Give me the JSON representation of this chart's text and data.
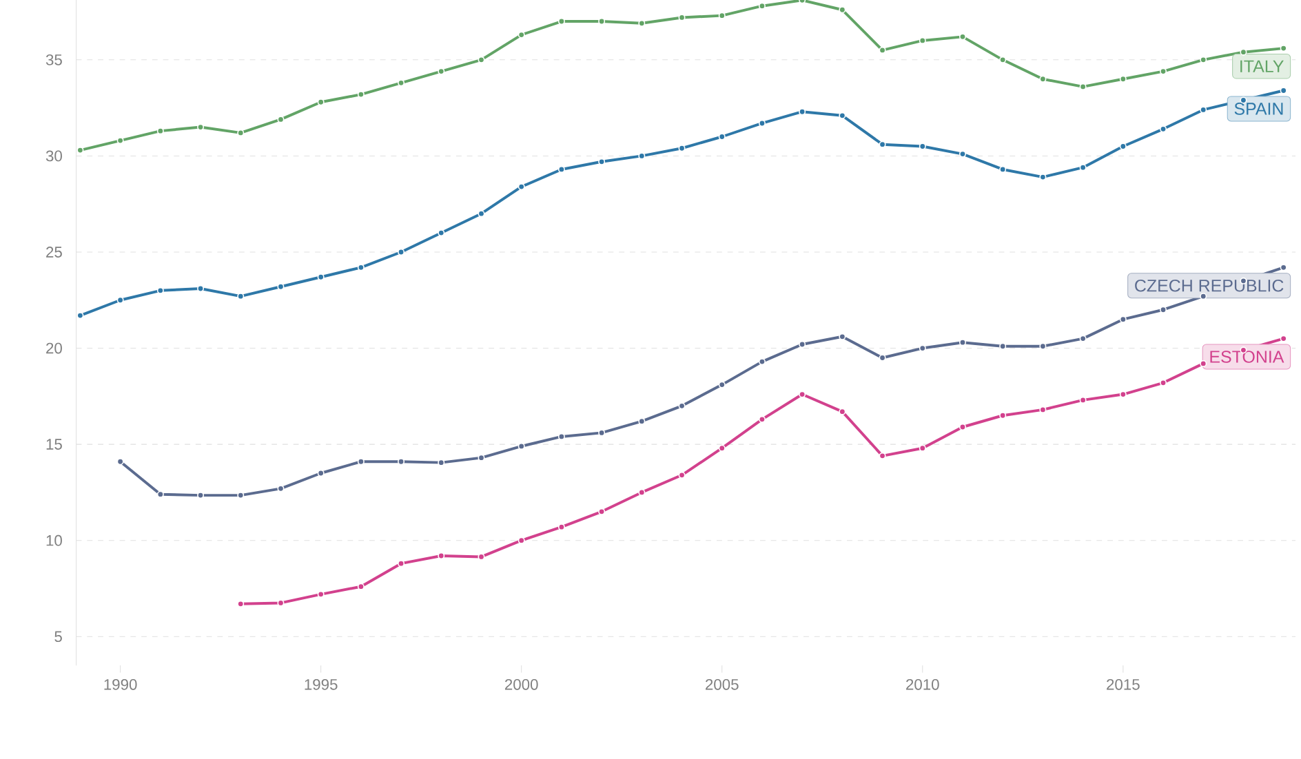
{
  "chart_data": {
    "type": "line",
    "marker": "circle",
    "line_style": "solid",
    "grid": "y",
    "xlim": [
      1988.9,
      2019.3
    ],
    "ylim": [
      3.5,
      38.3
    ],
    "xticks": [
      1990,
      1995,
      2000,
      2005,
      2010,
      2015
    ],
    "yticks": [
      5,
      10,
      15,
      20,
      25,
      30,
      35
    ],
    "series": [
      {
        "name": "ITALY",
        "color": "#62a466",
        "x": [
          1989,
          1990,
          1991,
          1992,
          1993,
          1994,
          1995,
          1996,
          1997,
          1998,
          1999,
          2000,
          2001,
          2002,
          2003,
          2004,
          2005,
          2006,
          2007,
          2008,
          2009,
          2010,
          2011,
          2012,
          2013,
          2014,
          2015,
          2016,
          2017,
          2018,
          2019
        ],
        "values": [
          30.3,
          30.8,
          31.3,
          31.5,
          31.2,
          31.9,
          32.8,
          33.2,
          33.8,
          34.4,
          35.0,
          36.3,
          37.0,
          37.0,
          36.9,
          37.2,
          37.3,
          37.8,
          38.1,
          37.6,
          35.5,
          36.0,
          36.2,
          35.0,
          34.0,
          33.6,
          34.0,
          34.4,
          35.0,
          35.4,
          35.6
        ]
      },
      {
        "name": "SPAIN",
        "color": "#2e78a8",
        "x": [
          1989,
          1990,
          1991,
          1992,
          1993,
          1994,
          1995,
          1996,
          1997,
          1998,
          1999,
          2000,
          2001,
          2002,
          2003,
          2004,
          2005,
          2006,
          2007,
          2008,
          2009,
          2010,
          2011,
          2012,
          2013,
          2014,
          2015,
          2016,
          2017,
          2018,
          2019
        ],
        "values": [
          21.7,
          22.5,
          23.0,
          23.1,
          22.7,
          23.2,
          23.7,
          24.2,
          25.0,
          26.0,
          27.0,
          28.4,
          29.3,
          29.7,
          30.0,
          30.4,
          31.0,
          31.7,
          32.3,
          32.1,
          30.6,
          30.5,
          30.1,
          29.3,
          28.9,
          29.4,
          30.5,
          31.4,
          32.4,
          32.9,
          33.4
        ]
      },
      {
        "name": "CZECH REPUBLIC",
        "color": "#5b6b8f",
        "x": [
          1990,
          1991,
          1992,
          1993,
          1994,
          1995,
          1996,
          1997,
          1998,
          1999,
          2000,
          2001,
          2002,
          2003,
          2004,
          2005,
          2006,
          2007,
          2008,
          2009,
          2010,
          2011,
          2012,
          2013,
          2014,
          2015,
          2016,
          2017,
          2018,
          2019
        ],
        "values": [
          14.1,
          12.4,
          12.35,
          12.35,
          12.7,
          13.5,
          14.1,
          14.1,
          14.05,
          14.3,
          14.9,
          15.4,
          15.6,
          16.2,
          17.0,
          18.1,
          19.3,
          20.2,
          20.6,
          19.5,
          20.0,
          20.3,
          20.1,
          20.1,
          20.5,
          21.5,
          22.0,
          22.7,
          23.5,
          24.2
        ]
      },
      {
        "name": "ESTONIA",
        "color": "#d2418d",
        "x": [
          1993,
          1994,
          1995,
          1996,
          1997,
          1998,
          1999,
          2000,
          2001,
          2002,
          2003,
          2004,
          2005,
          2006,
          2007,
          2008,
          2009,
          2010,
          2011,
          2012,
          2013,
          2014,
          2015,
          2016,
          2017,
          2018,
          2019
        ],
        "values": [
          6.7,
          6.75,
          7.2,
          7.6,
          8.8,
          9.2,
          9.15,
          10.0,
          10.7,
          11.5,
          12.5,
          13.4,
          14.8,
          16.3,
          17.6,
          16.7,
          14.4,
          14.8,
          15.9,
          16.5,
          16.8,
          17.3,
          17.6,
          18.2,
          19.2,
          19.9,
          20.5
        ]
      }
    ]
  }
}
